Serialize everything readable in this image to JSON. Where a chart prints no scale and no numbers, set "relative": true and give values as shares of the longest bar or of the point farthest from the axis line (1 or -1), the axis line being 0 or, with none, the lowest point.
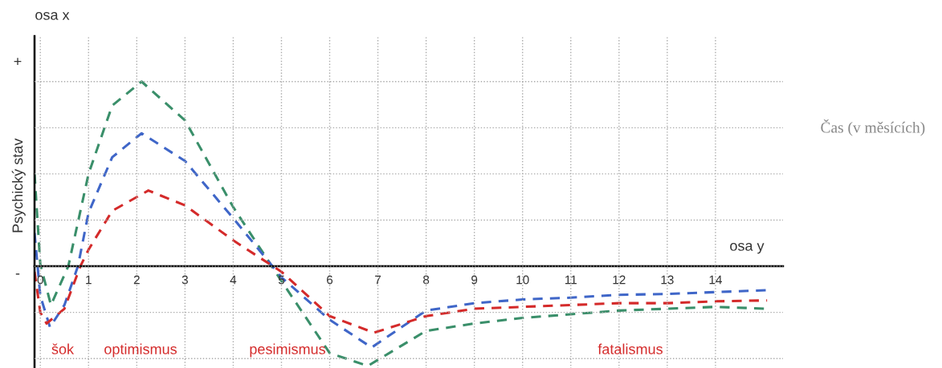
{
  "chart_data": {
    "type": "line",
    "relative": true,
    "xlabel": "Čas (v měsících)",
    "ylabel": "Psychický stav",
    "annotations": [
      "osa x",
      "osa y",
      "+",
      "-",
      "šok",
      "optimismus",
      "pesimismus",
      "fatalismus"
    ],
    "xlim": [
      -0.12,
      15.4
    ],
    "xticks": [
      0,
      1,
      2,
      3,
      4,
      5,
      6,
      7,
      8,
      9,
      10,
      11,
      12,
      13,
      14
    ],
    "grid": true,
    "tick_labels": "x",
    "line_style": "dashed",
    "legend": false,
    "series": [
      {
        "color": "#3a8f6a",
        "x": [
          -0.12,
          0,
          0.22,
          0.58,
          1.0,
          1.49,
          2.1,
          3.0,
          4.0,
          5.0,
          6.0,
          6.79,
          8,
          9,
          10,
          11,
          12,
          13,
          14,
          15.07
        ],
        "values": [
          0.5,
          0.01,
          -0.21,
          0,
          0.5,
          0.87,
          1.0,
          0.79,
          0.32,
          -0.08,
          -0.47,
          -0.54,
          -0.35,
          -0.31,
          -0.28,
          -0.26,
          -0.24,
          -0.23,
          -0.22,
          -0.23
        ]
      },
      {
        "color": "#3f66c8",
        "x": [
          -0.12,
          0,
          0.2,
          0.5,
          0.78,
          1.0,
          1.49,
          2.1,
          3.0,
          4.0,
          5.0,
          6.0,
          6.87,
          8,
          9,
          10,
          11,
          12,
          13,
          14,
          15.07
        ],
        "values": [
          0.18,
          -0.16,
          -0.33,
          -0.21,
          0,
          0.29,
          0.59,
          0.72,
          0.57,
          0.26,
          -0.06,
          -0.29,
          -0.44,
          -0.24,
          -0.2,
          -0.18,
          -0.17,
          -0.155,
          -0.15,
          -0.14,
          -0.13
        ]
      },
      {
        "color": "#d42a2a",
        "x": [
          -0.12,
          0,
          0.13,
          0.5,
          0.83,
          1.0,
          1.49,
          2.24,
          3.0,
          4.0,
          5.0,
          6.0,
          6.92,
          8,
          9,
          10,
          11,
          12,
          13,
          14,
          15.07
        ],
        "values": [
          -0.03,
          -0.25,
          -0.31,
          -0.23,
          0,
          0.09,
          0.3,
          0.41,
          0.33,
          0.14,
          -0.03,
          -0.27,
          -0.36,
          -0.27,
          -0.23,
          -0.22,
          -0.21,
          -0.2,
          -0.2,
          -0.19,
          -0.185
        ]
      }
    ]
  }
}
